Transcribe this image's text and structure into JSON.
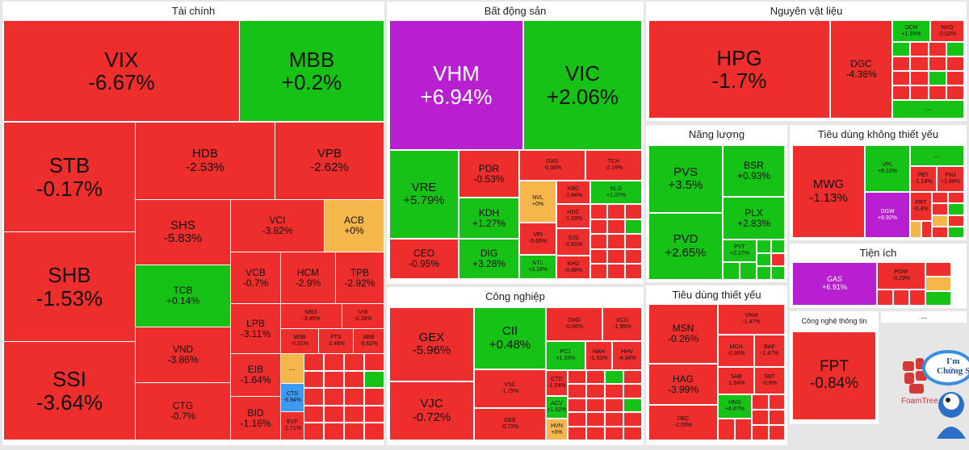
{
  "colors": {
    "down": "#ee2d2d",
    "up": "#17c217",
    "ref": "#f5b74b",
    "ceiling": "#b71fd1",
    "floor": "#3d9bef"
  },
  "sections": {
    "tai_chinh": {
      "title": "Tài chính"
    },
    "bat_dong_san": {
      "title": "Bất động sản"
    },
    "nguyen_vat_lieu": {
      "title": "Nguyên vật liệu"
    },
    "nang_luong": {
      "title": "Năng lượng"
    },
    "tieu_dung_khong_thiet_yeu": {
      "title": "Tiêu dùng không thiết yếu"
    },
    "cong_nghiep": {
      "title": "Công nghiệp"
    },
    "tieu_dung_thiet_yeu": {
      "title": "Tiêu dùng thiết yếu"
    },
    "tien_ich": {
      "title": "Tiện ích"
    },
    "cong_nghe": {
      "title": "Công nghệ thông tin"
    }
  },
  "tiles": {
    "VIX": {
      "ticker": "VIX",
      "change": "-6.67%"
    },
    "MBB": {
      "ticker": "MBB",
      "change": "+0.2%"
    },
    "STB": {
      "ticker": "STB",
      "change": "-0.17%"
    },
    "HDB": {
      "ticker": "HDB",
      "change": "-2.53%"
    },
    "VPB": {
      "ticker": "VPB",
      "change": "-2.62%"
    },
    "SHB": {
      "ticker": "SHB",
      "change": "-1.53%"
    },
    "SHS": {
      "ticker": "SHS",
      "change": "-5.83%"
    },
    "VCI": {
      "ticker": "VCI",
      "change": "-3.82%"
    },
    "ACB": {
      "ticker": "ACB",
      "change": "+0%"
    },
    "TCB": {
      "ticker": "TCB",
      "change": "+0.14%"
    },
    "VCB": {
      "ticker": "VCB",
      "change": "-0.7%"
    },
    "HCM": {
      "ticker": "HCM",
      "change": "-2.9%"
    },
    "TPB": {
      "ticker": "TPB",
      "change": "-2.92%"
    },
    "SSI": {
      "ticker": "SSI",
      "change": "-3.64%"
    },
    "VND": {
      "ticker": "VND",
      "change": "-3.86%"
    },
    "LPB": {
      "ticker": "LPB",
      "change": "-3.11%"
    },
    "MBS": {
      "ticker": "MBS",
      "change": "-3.46%"
    },
    "VIB": {
      "ticker": "VIB",
      "change": "-0.28%"
    },
    "MSB": {
      "ticker": "MSB",
      "change": "-0.31%"
    },
    "FTS": {
      "ticker": "FTS",
      "change": "-2.48%"
    },
    "ABB": {
      "ticker": "ABB",
      "change": "-5.62%"
    },
    "EIB": {
      "ticker": "EIB",
      "change": "-1.64%"
    },
    "CTG": {
      "ticker": "CTG",
      "change": "-0.7%"
    },
    "BID": {
      "ticker": "BID",
      "change": "-1.16%"
    },
    "CTS": {
      "ticker": "CTS",
      "change": "-6.94%"
    },
    "EVF": {
      "ticker": "EVF",
      "change": "-2.71%"
    },
    "VHM": {
      "ticker": "VHM",
      "change": "+6.94%"
    },
    "VIC": {
      "ticker": "VIC",
      "change": "+2.06%"
    },
    "VRE": {
      "ticker": "VRE",
      "change": "+5.79%"
    },
    "PDR": {
      "ticker": "PDR",
      "change": "-0.53%"
    },
    "DXG": {
      "ticker": "DXG",
      "change": "-0.36%"
    },
    "TCH": {
      "ticker": "TCH",
      "change": "-2.19%"
    },
    "KBC": {
      "ticker": "KBC",
      "change": "-1.84%"
    },
    "NLG": {
      "ticker": "NLG",
      "change": "+1.07%"
    },
    "KDH": {
      "ticker": "KDH",
      "change": "+1.27%"
    },
    "NVL": {
      "ticker": "NVL",
      "change": "+0%"
    },
    "HDC": {
      "ticker": "HDC",
      "change": "-1.59%"
    },
    "VPI": {
      "ticker": "VPI",
      "change": "-0.65%"
    },
    "SJS": {
      "ticker": "SJS",
      "change": "-2.81%"
    },
    "CEO": {
      "ticker": "CEO",
      "change": "-0.95%"
    },
    "DIG": {
      "ticker": "DIG",
      "change": "+3.28%"
    },
    "NTL": {
      "ticker": "NTL",
      "change": "+3.18%"
    },
    "KHG": {
      "ticker": "KHG",
      "change": "-0.88%"
    },
    "GEX": {
      "ticker": "GEX",
      "change": "-5.96%"
    },
    "CII": {
      "ticker": "CII",
      "change": "+0.48%"
    },
    "GMD": {
      "ticker": "GMD",
      "change": "-0.66%"
    },
    "VCG": {
      "ticker": "VCG",
      "change": "-1.95%"
    },
    "PC1": {
      "ticker": "PC1",
      "change": "+1.55%"
    },
    "HAH": {
      "ticker": "HAH",
      "change": "-1.53%"
    },
    "HHV": {
      "ticker": "HHV",
      "change": "-4.34%"
    },
    "VJC": {
      "ticker": "VJC",
      "change": "-0.72%"
    },
    "VSC": {
      "ticker": "VSC",
      "change": "-1.75%"
    },
    "CTD": {
      "ticker": "CTD",
      "change": "-1.04%"
    },
    "ACV": {
      "ticker": "ACV",
      "change": "+1.02%"
    },
    "GEE": {
      "ticker": "GEE",
      "change": "-6.72%"
    },
    "HVN": {
      "ticker": "HVN",
      "change": "+0%"
    },
    "HPG": {
      "ticker": "HPG",
      "change": "-1.7%"
    },
    "DGC": {
      "ticker": "DGC",
      "change": "-4.38%"
    },
    "DCM": {
      "ticker": "DCM",
      "change": "+1.89%"
    },
    "NKG": {
      "ticker": "NKG",
      "change": "-2.02%"
    },
    "PVS": {
      "ticker": "PVS",
      "change": "+3.5%"
    },
    "BSR": {
      "ticker": "BSR",
      "change": "+0.93%"
    },
    "PLX": {
      "ticker": "PLX",
      "change": "+2.83%"
    },
    "PVD": {
      "ticker": "PVD",
      "change": "+2.65%"
    },
    "PVT": {
      "ticker": "PVT",
      "change": "+2.17%"
    },
    "MWG": {
      "ticker": "MWG",
      "change": "-1.13%"
    },
    "VPL": {
      "ticker": "VPL",
      "change": "+6.16%"
    },
    "PET": {
      "ticker": "PET",
      "change": "-1.18%"
    },
    "PNJ": {
      "ticker": "PNJ",
      "change": "+1.68%"
    },
    "DGW": {
      "ticker": "DGW",
      "change": "+6.92%"
    },
    "FRT": {
      "ticker": "FRT",
      "change": "-0.4%"
    },
    "MSN": {
      "ticker": "MSN",
      "change": "-0.26%"
    },
    "VNM": {
      "ticker": "VNM",
      "change": "-1.47%"
    },
    "MCH": {
      "ticker": "MCH",
      "change": "-0.36%"
    },
    "BAF": {
      "ticker": "BAF",
      "change": "-1.47%"
    },
    "HAG": {
      "ticker": "HAG",
      "change": "-3.99%"
    },
    "SAB": {
      "ticker": "SAB",
      "change": "-1.84%"
    },
    "SBT": {
      "ticker": "SBT",
      "change": "-0.8%"
    },
    "HNG": {
      "ticker": "HNG",
      "change": "+6.67%"
    },
    "DBC": {
      "ticker": "DBC",
      "change": "-2.03%"
    },
    "GAS": {
      "ticker": "GAS",
      "change": "+6.91%"
    },
    "POW": {
      "ticker": "POW",
      "change": "-0.29%"
    },
    "FPT": {
      "ticker": "FPT",
      "change": "-0.84%"
    }
  },
  "more_label": "...",
  "logo": {
    "brand": "FoamTree",
    "bubble_line1": "I'm",
    "bubble_line2": "Chứng S"
  }
}
